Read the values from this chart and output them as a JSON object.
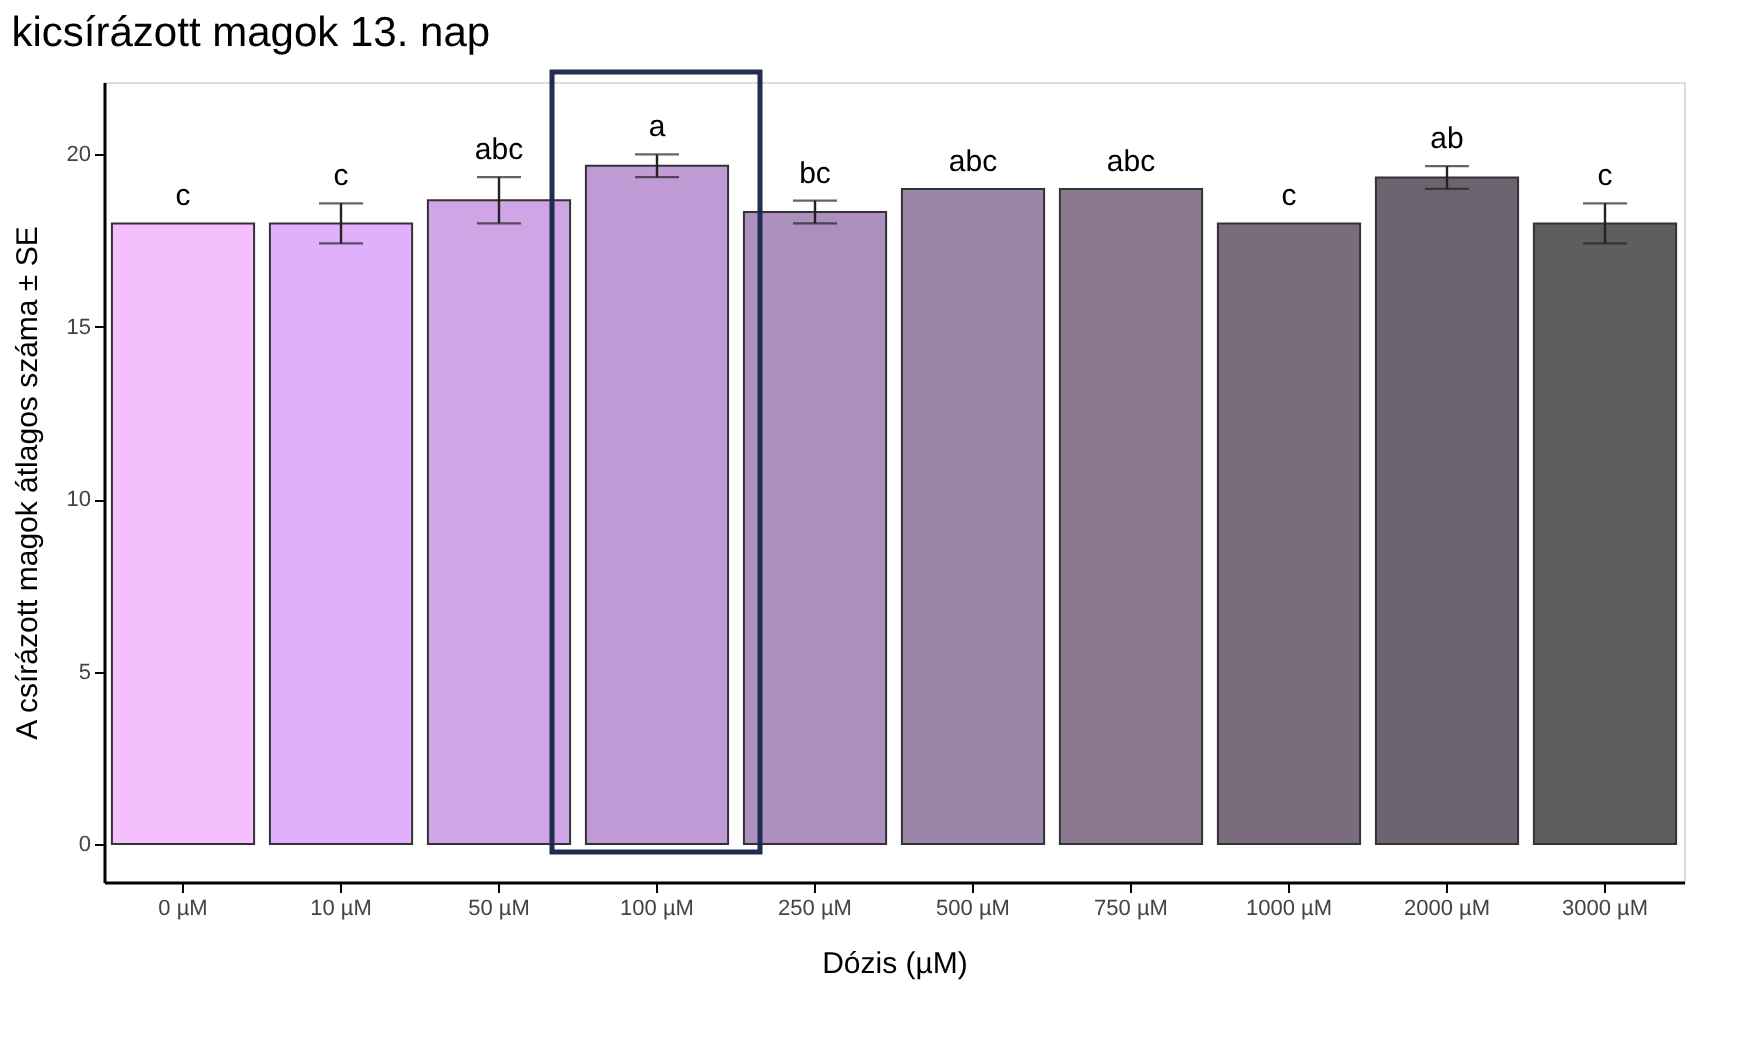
{
  "chart_data": {
    "type": "bar",
    "title": "kicsírázott magok 13. nap",
    "xlabel": "Dózis (µM)",
    "ylabel": "A csírázott magok átlagos száma ± SE",
    "categories": [
      "0 µM",
      "10 µM",
      "50 µM",
      "100 µM",
      "250 µM",
      "500 µM",
      "750 µM",
      "1000 µM",
      "2000 µM",
      "3000 µM"
    ],
    "series": [
      {
        "values": [
          18,
          18,
          18.67,
          19.67,
          18.33,
          19,
          19,
          18,
          19.33,
          18
        ],
        "colors": [
          "#f5befd",
          "#e0b0fc",
          "#cfa5e6",
          "#c09bd5",
          "#ab8fbd",
          "#9a86a9",
          "#8a7891",
          "#7a6c7d",
          "#6b6470",
          "#5e5e5e"
        ],
        "errors": [
          null,
          0.58,
          0.67,
          0.33,
          0.33,
          null,
          null,
          null,
          0.33,
          0.58
        ]
      }
    ],
    "ylim": [
      -1.1,
      22.1
    ],
    "yticks": [
      0,
      5,
      10,
      15,
      20
    ],
    "grid": false,
    "annotations": [
      "c",
      "c",
      "abc",
      "a",
      "bc",
      "abc",
      "abc",
      "c",
      "ab",
      "c"
    ]
  }
}
